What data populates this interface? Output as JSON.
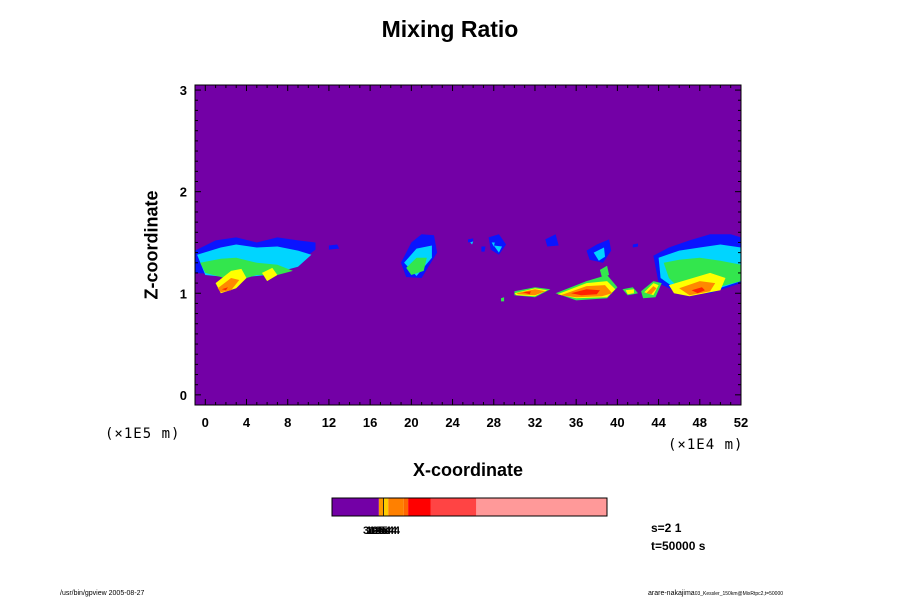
{
  "chart_data": {
    "type": "heatmap",
    "title": "Mixing Ratio",
    "xlabel": "X-coordinate",
    "ylabel": "Z-coordinate",
    "x_scale_label": "(×1E4 m)",
    "y_scale_label": "(×1E5 m)",
    "xlim": [
      -1,
      52
    ],
    "ylim": [
      -0.1,
      3.05
    ],
    "x_ticks": [
      0,
      4,
      8,
      12,
      16,
      20,
      24,
      28,
      32,
      36,
      40,
      44,
      48,
      52
    ],
    "y_ticks": [
      0,
      1,
      2,
      3
    ],
    "background_color": "#7300a6",
    "colorbar": {
      "segments": [
        {
          "color": "#7300a6",
          "width": 1.65
        },
        {
          "color": "#ff9900",
          "width": 0.15
        },
        {
          "color": "#000000",
          "width": 0.03
        },
        {
          "color": "#ffcc00",
          "width": 0.15
        },
        {
          "color": "#ff8000",
          "width": 0.55
        },
        {
          "color": "#ff6600",
          "width": 0.15
        },
        {
          "color": "#ff0000",
          "width": 0.8
        },
        {
          "color": "#ff4444",
          "width": 1.6
        },
        {
          "color": "#ff9999",
          "width": 4.6
        }
      ],
      "overlapping_labels": [
        "3e-5",
        "1e-5",
        "1e-4",
        "2e-4",
        "3e-4",
        "5e-4"
      ]
    },
    "regions": [
      {
        "level": "blue",
        "color": "#0a14ff",
        "polygons": [
          [
            [
              -1,
              1.42
            ],
            [
              1,
              1.52
            ],
            [
              3,
              1.55
            ],
            [
              5,
              1.5
            ],
            [
              7,
              1.55
            ],
            [
              9,
              1.52
            ],
            [
              10.7,
              1.5
            ],
            [
              10.7,
              1.43
            ],
            [
              9,
              1.3
            ],
            [
              6,
              1.2
            ],
            [
              4,
              1.2
            ],
            [
              2,
              1.18
            ],
            [
              -1,
              1.2
            ]
          ],
          [
            [
              12,
              1.47
            ],
            [
              12.8,
              1.48
            ],
            [
              13,
              1.44
            ],
            [
              12,
              1.43
            ]
          ],
          [
            [
              19,
              1.3
            ],
            [
              20,
              1.5
            ],
            [
              21,
              1.58
            ],
            [
              22.2,
              1.57
            ],
            [
              22.5,
              1.4
            ],
            [
              21,
              1.15
            ],
            [
              19.5,
              1.16
            ]
          ],
          [
            [
              25.5,
              1.53
            ],
            [
              26,
              1.54
            ],
            [
              26,
              1.51
            ],
            [
              25.5,
              1.5
            ]
          ],
          [
            [
              27.5,
              1.55
            ],
            [
              28.5,
              1.58
            ],
            [
              29.2,
              1.48
            ],
            [
              28.5,
              1.38
            ],
            [
              27.7,
              1.43
            ]
          ],
          [
            [
              26.8,
              1.46
            ],
            [
              27.2,
              1.46
            ],
            [
              27.1,
              1.41
            ],
            [
              26.8,
              1.41
            ]
          ],
          [
            [
              33,
              1.53
            ],
            [
              34,
              1.58
            ],
            [
              34.3,
              1.47
            ],
            [
              33.2,
              1.46
            ]
          ],
          [
            [
              37,
              1.42
            ],
            [
              38,
              1.48
            ],
            [
              39.2,
              1.53
            ],
            [
              39.4,
              1.42
            ],
            [
              38.6,
              1.3
            ],
            [
              37.3,
              1.33
            ]
          ],
          [
            [
              41.5,
              1.48
            ],
            [
              42,
              1.49
            ],
            [
              42,
              1.46
            ],
            [
              41.5,
              1.45
            ]
          ],
          [
            [
              43.5,
              1.37
            ],
            [
              45,
              1.45
            ],
            [
              47,
              1.52
            ],
            [
              49,
              1.58
            ],
            [
              51,
              1.58
            ],
            [
              52,
              1.55
            ],
            [
              52,
              1.1
            ],
            [
              49,
              1.0
            ],
            [
              46,
              1.0
            ],
            [
              44,
              1.1
            ]
          ]
        ]
      },
      {
        "level": "cyan",
        "color": "#00d5ff",
        "polygons": [
          [
            [
              -0.8,
              1.38
            ],
            [
              1.5,
              1.45
            ],
            [
              3,
              1.48
            ],
            [
              5,
              1.45
            ],
            [
              7,
              1.46
            ],
            [
              9,
              1.42
            ],
            [
              10.3,
              1.38
            ],
            [
              9,
              1.26
            ],
            [
              6,
              1.18
            ],
            [
              3,
              1.15
            ],
            [
              0,
              1.18
            ]
          ],
          [
            [
              19.3,
              1.3
            ],
            [
              20.5,
              1.44
            ],
            [
              22,
              1.47
            ],
            [
              22,
              1.35
            ],
            [
              20.5,
              1.17
            ]
          ],
          [
            [
              28,
              1.47
            ],
            [
              28.8,
              1.46
            ],
            [
              28.5,
              1.4
            ]
          ],
          [
            [
              37.7,
              1.4
            ],
            [
              38.7,
              1.45
            ],
            [
              38.8,
              1.36
            ],
            [
              38.2,
              1.32
            ]
          ],
          [
            [
              44,
              1.35
            ],
            [
              46,
              1.42
            ],
            [
              48,
              1.45
            ],
            [
              50,
              1.48
            ],
            [
              52,
              1.45
            ],
            [
              52,
              1.12
            ],
            [
              49,
              1.02
            ],
            [
              46,
              1.02
            ],
            [
              44.2,
              1.15
            ]
          ],
          [
            [
              27.8,
              1.5
            ],
            [
              28.1,
              1.5
            ],
            [
              28,
              1.46
            ]
          ],
          [
            [
              25.7,
              1.5
            ],
            [
              26,
              1.51
            ],
            [
              25.9,
              1.48
            ]
          ]
        ]
      },
      {
        "level": "green",
        "color": "#33e64d",
        "polygons": [
          [
            [
              -0.5,
              1.3
            ],
            [
              1.5,
              1.34
            ],
            [
              3,
              1.35
            ],
            [
              5,
              1.3
            ],
            [
              7,
              1.28
            ],
            [
              8.5,
              1.22
            ],
            [
              7,
              1.18
            ],
            [
              5,
              1.18
            ],
            [
              3,
              1.12
            ],
            [
              0,
              1.2
            ]
          ],
          [
            [
              19.5,
              1.25
            ],
            [
              20.5,
              1.35
            ],
            [
              21.5,
              1.35
            ],
            [
              21.2,
              1.22
            ],
            [
              20,
              1.18
            ]
          ],
          [
            [
              44.5,
              1.3
            ],
            [
              46,
              1.33
            ],
            [
              48,
              1.35
            ],
            [
              50,
              1.32
            ],
            [
              52,
              1.28
            ],
            [
              52,
              1.12
            ],
            [
              49,
              1.04
            ],
            [
              46,
              1.05
            ],
            [
              45,
              1.15
            ]
          ],
          [
            [
              30,
              1.02
            ],
            [
              32,
              1.06
            ],
            [
              33.5,
              1.04
            ],
            [
              32,
              0.96
            ],
            [
              30,
              0.98
            ]
          ],
          [
            [
              34,
              1.0
            ],
            [
              37,
              1.12
            ],
            [
              39,
              1.18
            ],
            [
              40,
              1.06
            ],
            [
              39,
              0.95
            ],
            [
              36,
              0.93
            ]
          ],
          [
            [
              40.5,
              1.04
            ],
            [
              41.5,
              1.06
            ],
            [
              42,
              1.0
            ],
            [
              41,
              0.98
            ]
          ],
          [
            [
              42.3,
              1.02
            ],
            [
              43.5,
              1.12
            ],
            [
              44.3,
              1.1
            ],
            [
              43.7,
              0.96
            ],
            [
              42.5,
              0.95
            ]
          ],
          [
            [
              38.3,
              1.23
            ],
            [
              39,
              1.27
            ],
            [
              39.2,
              1.18
            ],
            [
              38.5,
              1.16
            ]
          ],
          [
            [
              28.7,
              0.95
            ],
            [
              29,
              0.96
            ],
            [
              29,
              0.92
            ],
            [
              28.7,
              0.92
            ]
          ],
          [
            [
              2.5,
              1.22
            ],
            [
              3.5,
              1.24
            ],
            [
              3.3,
              1.18
            ],
            [
              2.6,
              1.17
            ]
          ]
        ]
      },
      {
        "level": "yellow",
        "color": "#ffff00",
        "polygons": [
          [
            [
              1,
              1.1
            ],
            [
              2.5,
              1.22
            ],
            [
              3.5,
              1.24
            ],
            [
              4,
              1.15
            ],
            [
              3,
              1.05
            ],
            [
              1.5,
              1.0
            ]
          ],
          [
            [
              5.5,
              1.2
            ],
            [
              6.5,
              1.25
            ],
            [
              7,
              1.18
            ],
            [
              6,
              1.12
            ]
          ],
          [
            [
              45,
              1.08
            ],
            [
              47,
              1.14
            ],
            [
              49,
              1.2
            ],
            [
              50.5,
              1.15
            ],
            [
              50,
              1.03
            ],
            [
              47,
              0.97
            ],
            [
              45.5,
              1.0
            ]
          ],
          [
            [
              30,
              1.0
            ],
            [
              32,
              1.05
            ],
            [
              33.2,
              1.03
            ],
            [
              32,
              0.97
            ],
            [
              30.2,
              0.98
            ]
          ],
          [
            [
              34.2,
              0.99
            ],
            [
              37,
              1.1
            ],
            [
              39,
              1.12
            ],
            [
              39.8,
              1.04
            ],
            [
              39,
              0.96
            ],
            [
              36,
              0.95
            ]
          ],
          [
            [
              40.8,
              1.03
            ],
            [
              41.6,
              1.04
            ],
            [
              41.6,
              1.0
            ],
            [
              41,
              0.99
            ]
          ],
          [
            [
              42.6,
              1.01
            ],
            [
              43.5,
              1.1
            ],
            [
              44,
              1.08
            ],
            [
              43.5,
              0.98
            ]
          ]
        ]
      },
      {
        "level": "orange",
        "color": "#ff8800",
        "polygons": [
          [
            [
              1.2,
              1.05
            ],
            [
              2.5,
              1.15
            ],
            [
              3.3,
              1.13
            ],
            [
              2.5,
              1.03
            ],
            [
              1.5,
              1.01
            ]
          ],
          [
            [
              46,
              1.05
            ],
            [
              48,
              1.12
            ],
            [
              49.5,
              1.1
            ],
            [
              49,
              1.02
            ],
            [
              47,
              0.98
            ]
          ],
          [
            [
              30.2,
              1.0
            ],
            [
              32,
              1.04
            ],
            [
              33,
              1.02
            ],
            [
              32,
              0.98
            ],
            [
              30.4,
              0.99
            ]
          ],
          [
            [
              34.5,
              0.98
            ],
            [
              37,
              1.07
            ],
            [
              38.8,
              1.08
            ],
            [
              39.5,
              1.0
            ],
            [
              38.5,
              0.97
            ],
            [
              36,
              0.96
            ]
          ],
          [
            [
              42.8,
              1.0
            ],
            [
              43.5,
              1.07
            ],
            [
              43.8,
              1.05
            ],
            [
              43.3,
              0.99
            ]
          ]
        ]
      },
      {
        "level": "red",
        "color": "#ff2200",
        "polygons": [
          [
            [
              35.5,
              1.0
            ],
            [
              37,
              1.04
            ],
            [
              38.3,
              1.03
            ],
            [
              38,
              0.99
            ],
            [
              36.5,
              0.98
            ]
          ],
          [
            [
              30.8,
              1.01
            ],
            [
              31.6,
              1.02
            ],
            [
              31.5,
              0.99
            ]
          ],
          [
            [
              47.2,
              1.03
            ],
            [
              48.2,
              1.06
            ],
            [
              48.5,
              1.03
            ],
            [
              47.8,
              1.0
            ]
          ],
          [
            [
              1.6,
              1.04
            ],
            [
              2.2,
              1.06
            ],
            [
              2.0,
              1.03
            ]
          ]
        ]
      }
    ]
  },
  "info": {
    "s_label": "s=2 1",
    "t_label": "t=50000 s"
  },
  "footer": {
    "left": "/usr/bin/gpview 2005-08-27",
    "right": "arare-nakajima",
    "right_small": "03_Kessler_150km@MixRtpc2,t=50000"
  }
}
